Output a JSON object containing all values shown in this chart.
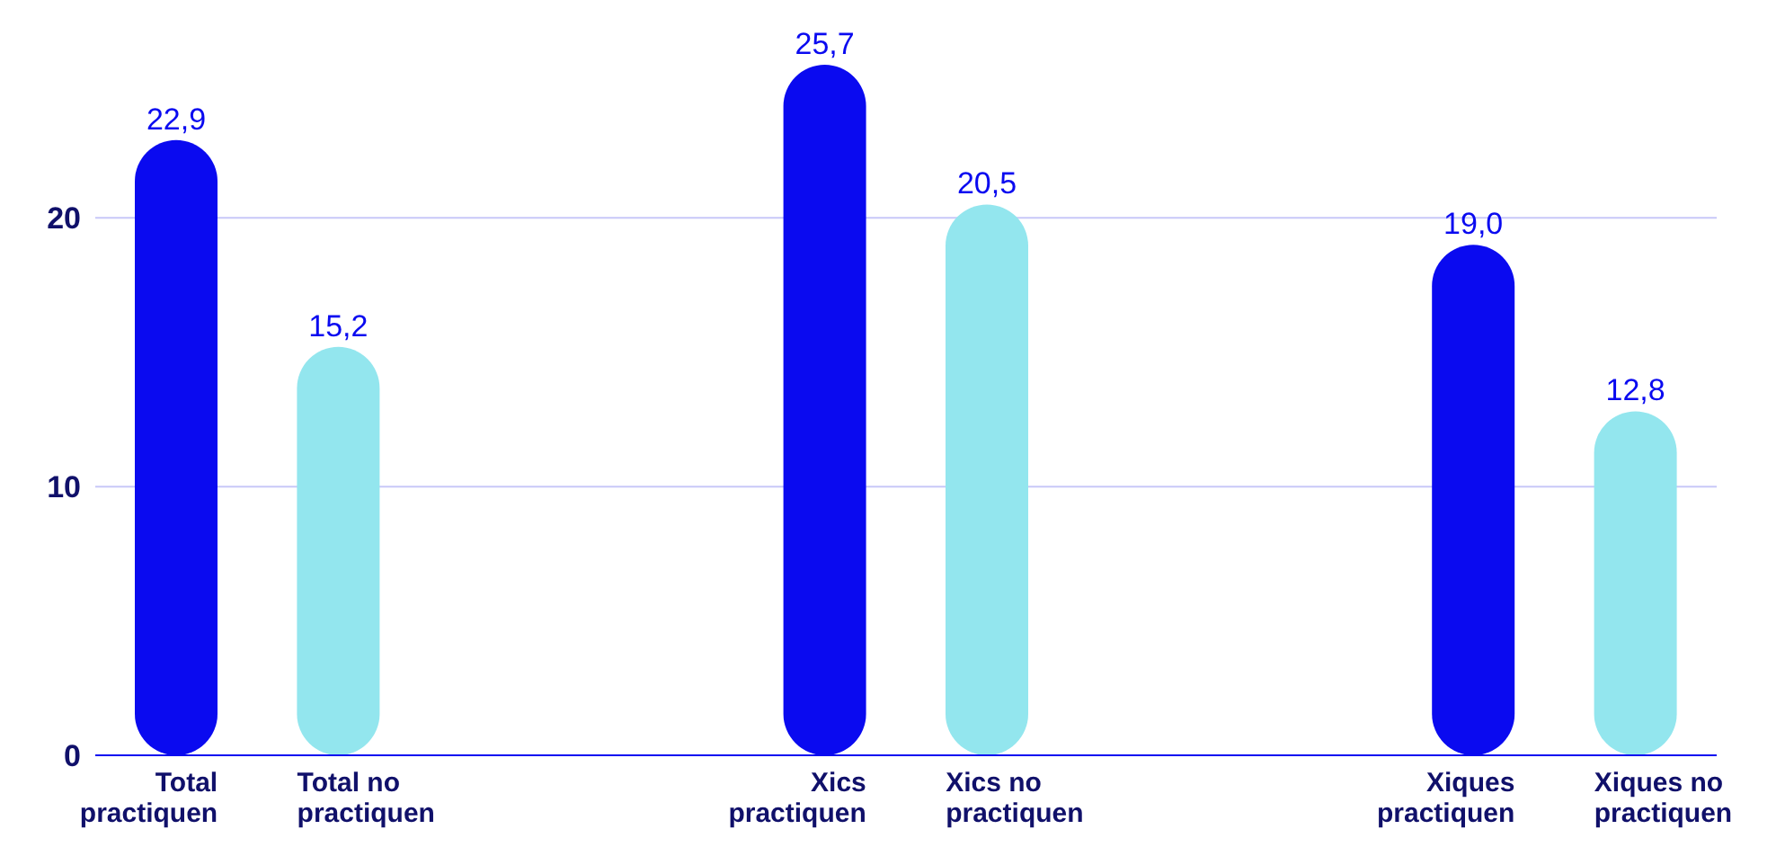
{
  "chart_data": {
    "type": "bar",
    "categories": [
      "Total practiquen",
      "Total no practiquen",
      null,
      null,
      "Xics practiquen",
      "Xics no practiquen",
      null,
      null,
      "Xiques practiquen",
      "Xiques no practiquen"
    ],
    "values": [
      22.9,
      15.2,
      null,
      null,
      25.7,
      20.5,
      null,
      null,
      19.0,
      12.8
    ],
    "colors": [
      "#0a0af0",
      "#93e6ee",
      null,
      null,
      "#0a0af0",
      "#93e6ee",
      null,
      null,
      "#0a0af0",
      "#93e6ee"
    ],
    "value_labels": [
      "22,9",
      "15,2",
      null,
      null,
      "25,7",
      "20,5",
      null,
      null,
      "19,0",
      "12,8"
    ],
    "ylim": [
      0,
      25.7
    ],
    "yticks": [
      0,
      10,
      20
    ],
    "grid": "y"
  }
}
